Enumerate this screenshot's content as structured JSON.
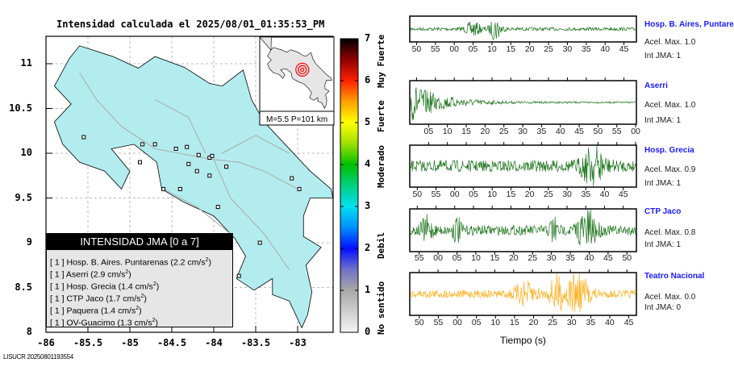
{
  "title": "Intensidad calculada el 2025/08/01_01:35:53_PM",
  "footer": "LISUCR 20250801193554",
  "colors": {
    "land": "#b3ecee",
    "inset_land": "#e6e6e6",
    "epicenter": "#ff0000",
    "wave_green": "#006400",
    "wave_orange": "#ffa500",
    "station_link": "#1a1aff"
  },
  "chart_data": [
    {
      "type": "map",
      "title": "Intensidad calculada el 2025/08/01_01:35:53_PM",
      "xlim": [
        -86,
        -82.58
      ],
      "ylim": [
        8,
        11.3
      ],
      "x_ticks": [
        "-86",
        "-85.5",
        "-85",
        "-84.5",
        "-84",
        "-83.5",
        "-83"
      ],
      "y_ticks": [
        "11",
        "10.5",
        "10",
        "9.5",
        "9",
        "8.5",
        "8"
      ],
      "grid": true,
      "stations": [
        {
          "lon": -85.55,
          "lat": 10.18
        },
        {
          "lon": -84.7,
          "lat": 10.1
        },
        {
          "lon": -84.45,
          "lat": 10.05
        },
        {
          "lon": -84.32,
          "lat": 10.07
        },
        {
          "lon": -84.18,
          "lat": 9.98
        },
        {
          "lon": -84.05,
          "lat": 9.95
        },
        {
          "lon": -84.02,
          "lat": 9.97
        },
        {
          "lon": -84.3,
          "lat": 9.88
        },
        {
          "lon": -84.2,
          "lat": 9.8
        },
        {
          "lon": -84.05,
          "lat": 9.75
        },
        {
          "lon": -83.85,
          "lat": 9.85
        },
        {
          "lon": -84.88,
          "lat": 9.9
        },
        {
          "lon": -84.6,
          "lat": 9.6
        },
        {
          "lon": -84.4,
          "lat": 9.6
        },
        {
          "lon": -83.95,
          "lat": 9.4
        },
        {
          "lon": -83.07,
          "lat": 9.72
        },
        {
          "lon": -82.98,
          "lat": 9.6
        },
        {
          "lon": -83.45,
          "lat": 9.0
        },
        {
          "lon": -83.7,
          "lat": 8.63
        },
        {
          "lon": -84.85,
          "lat": 10.1
        }
      ],
      "legend": {
        "header": "INTENSIDAD JMA [0 a 7]",
        "rows": [
          {
            "int": "[ 1 ]",
            "text": "Hosp. B. Aires. Puntarenas (2.2 cm/s",
            "sup": "2",
            ")": ")"
          },
          {
            "int": "[ 1 ]",
            "text": "Aserri (2.9 cm/s",
            "sup": "2",
            ")": ")"
          },
          {
            "int": "[ 1 ]",
            "text": "Hosp. Grecia (1.4 cm/s",
            "sup": "2",
            ")": ")"
          },
          {
            "int": "[ 1 ]",
            "text": "CTP Jaco (1.7 cm/s",
            "sup": "2",
            ")": ")"
          },
          {
            "int": "[ 1 ]",
            "text": "Paquera (1.4 cm/s",
            "sup": "2",
            ")": ")"
          },
          {
            "int": "[ 1 ]",
            "text": "OV-Guacimo (1.3 cm/s",
            "sup": "2",
            ")": ")"
          }
        ]
      },
      "inset": {
        "label": "M=5.5 P=101 km",
        "epicenter": {
          "lon": -84.1,
          "lat": 10.05
        }
      }
    },
    {
      "type": "colorbar",
      "range": [
        0,
        7
      ],
      "ticks": [
        "0",
        "1",
        "2",
        "3",
        "4",
        "5",
        "6",
        "7"
      ],
      "categories": [
        "No sentido",
        "Debil",
        "Moderado",
        "Fuerte",
        "Muy Fuerte"
      ],
      "stops": [
        {
          "v": 0,
          "c": "#f4f4f4"
        },
        {
          "v": 1,
          "c": "#a8a8a8"
        },
        {
          "v": 1.5,
          "c": "#7070c8"
        },
        {
          "v": 2,
          "c": "#0010ff"
        },
        {
          "v": 2.5,
          "c": "#0090ff"
        },
        {
          "v": 3,
          "c": "#00e0f0"
        },
        {
          "v": 3.5,
          "c": "#00d080"
        },
        {
          "v": 4,
          "c": "#00c000"
        },
        {
          "v": 4.5,
          "c": "#a0e000"
        },
        {
          "v": 5,
          "c": "#ffff00"
        },
        {
          "v": 5.5,
          "c": "#ffa000"
        },
        {
          "v": 6,
          "c": "#ff2000"
        },
        {
          "v": 6.5,
          "c": "#900000"
        },
        {
          "v": 7,
          "c": "#000000"
        }
      ]
    },
    {
      "type": "line",
      "xlabel": "Tiempo (s)",
      "panels": [
        {
          "name": "Hosp. B. Aires, Puntare",
          "acel": "Acel. Max. 1.0",
          "int": "Int JMA: 1",
          "color": "green",
          "ticks": [
            "50",
            "55",
            "00",
            "05",
            "10",
            "15",
            "20",
            "25",
            "30",
            "35",
            "40",
            "45"
          ],
          "first_tick_sec": 50,
          "start_sec": 48.2,
          "end_sec": 108.3,
          "noise": 0.15,
          "bursts": [
            {
              "t": 65,
              "a": 0.6,
              "w": 2
            },
            {
              "t": 71,
              "a": 1.0,
              "w": 1.5
            }
          ]
        },
        {
          "name": "Aserri",
          "acel": "Acel. Max. 1.0",
          "int": "Int JMA: 1",
          "color": "green",
          "ticks": [
            "05",
            "10",
            "15",
            "20",
            "25",
            "30",
            "35",
            "40",
            "45",
            "50",
            "55",
            "00"
          ],
          "first_tick_sec": 5,
          "start_sec": 0,
          "end_sec": 60.2,
          "noise": 0.04,
          "decay": {
            "t": 0,
            "a": 1.0,
            "tau": 8
          }
        },
        {
          "name": "Hosp. Grecia",
          "acel": "Acel. Max. 0.9",
          "int": "Int JMA: 1",
          "color": "green",
          "ticks": [
            "50",
            "55",
            "00",
            "05",
            "10",
            "15",
            "20",
            "25",
            "30",
            "35",
            "40",
            "45"
          ],
          "first_tick_sec": 50,
          "start_sec": 48.0,
          "end_sec": 108.5,
          "noise": 0.3,
          "bursts": [
            {
              "t": 97,
              "a": 0.9,
              "w": 3
            }
          ]
        },
        {
          "name": "CTP Jaco",
          "acel": "Acel. Max. 0.8",
          "int": "Int JMA: 1",
          "color": "green",
          "ticks": [
            "55",
            "00",
            "05",
            "10",
            "15",
            "20",
            "25",
            "30",
            "35",
            "40",
            "45",
            "50"
          ],
          "first_tick_sec": 55,
          "start_sec": 52.5,
          "end_sec": 112.5,
          "noise": 0.25,
          "bursts": [
            {
              "t": 57,
              "a": 0.6,
              "w": 1.5
            },
            {
              "t": 65,
              "a": 0.6,
              "w": 1
            },
            {
              "t": 90.5,
              "a": 0.7,
              "w": 1
            },
            {
              "t": 99.5,
              "a": 1.0,
              "w": 2.5
            }
          ]
        },
        {
          "name": "Teatro Nacional",
          "acel": "Acel. Max. 0.0",
          "int": "Int JMA: 0",
          "color": "orange",
          "ticks": [
            "50",
            "55",
            "00",
            "05",
            "10",
            "15",
            "20",
            "25",
            "30",
            "35",
            "40",
            "45"
          ],
          "first_tick_sec": 50,
          "start_sec": 47.5,
          "end_sec": 107.0,
          "noise": 0.2,
          "bursts": [
            {
              "t": 78,
              "a": 0.5,
              "w": 3
            },
            {
              "t": 86,
              "a": 1.0,
              "w": 1.5
            },
            {
              "t": 91.5,
              "a": 1.0,
              "w": 3
            }
          ]
        }
      ]
    }
  ]
}
